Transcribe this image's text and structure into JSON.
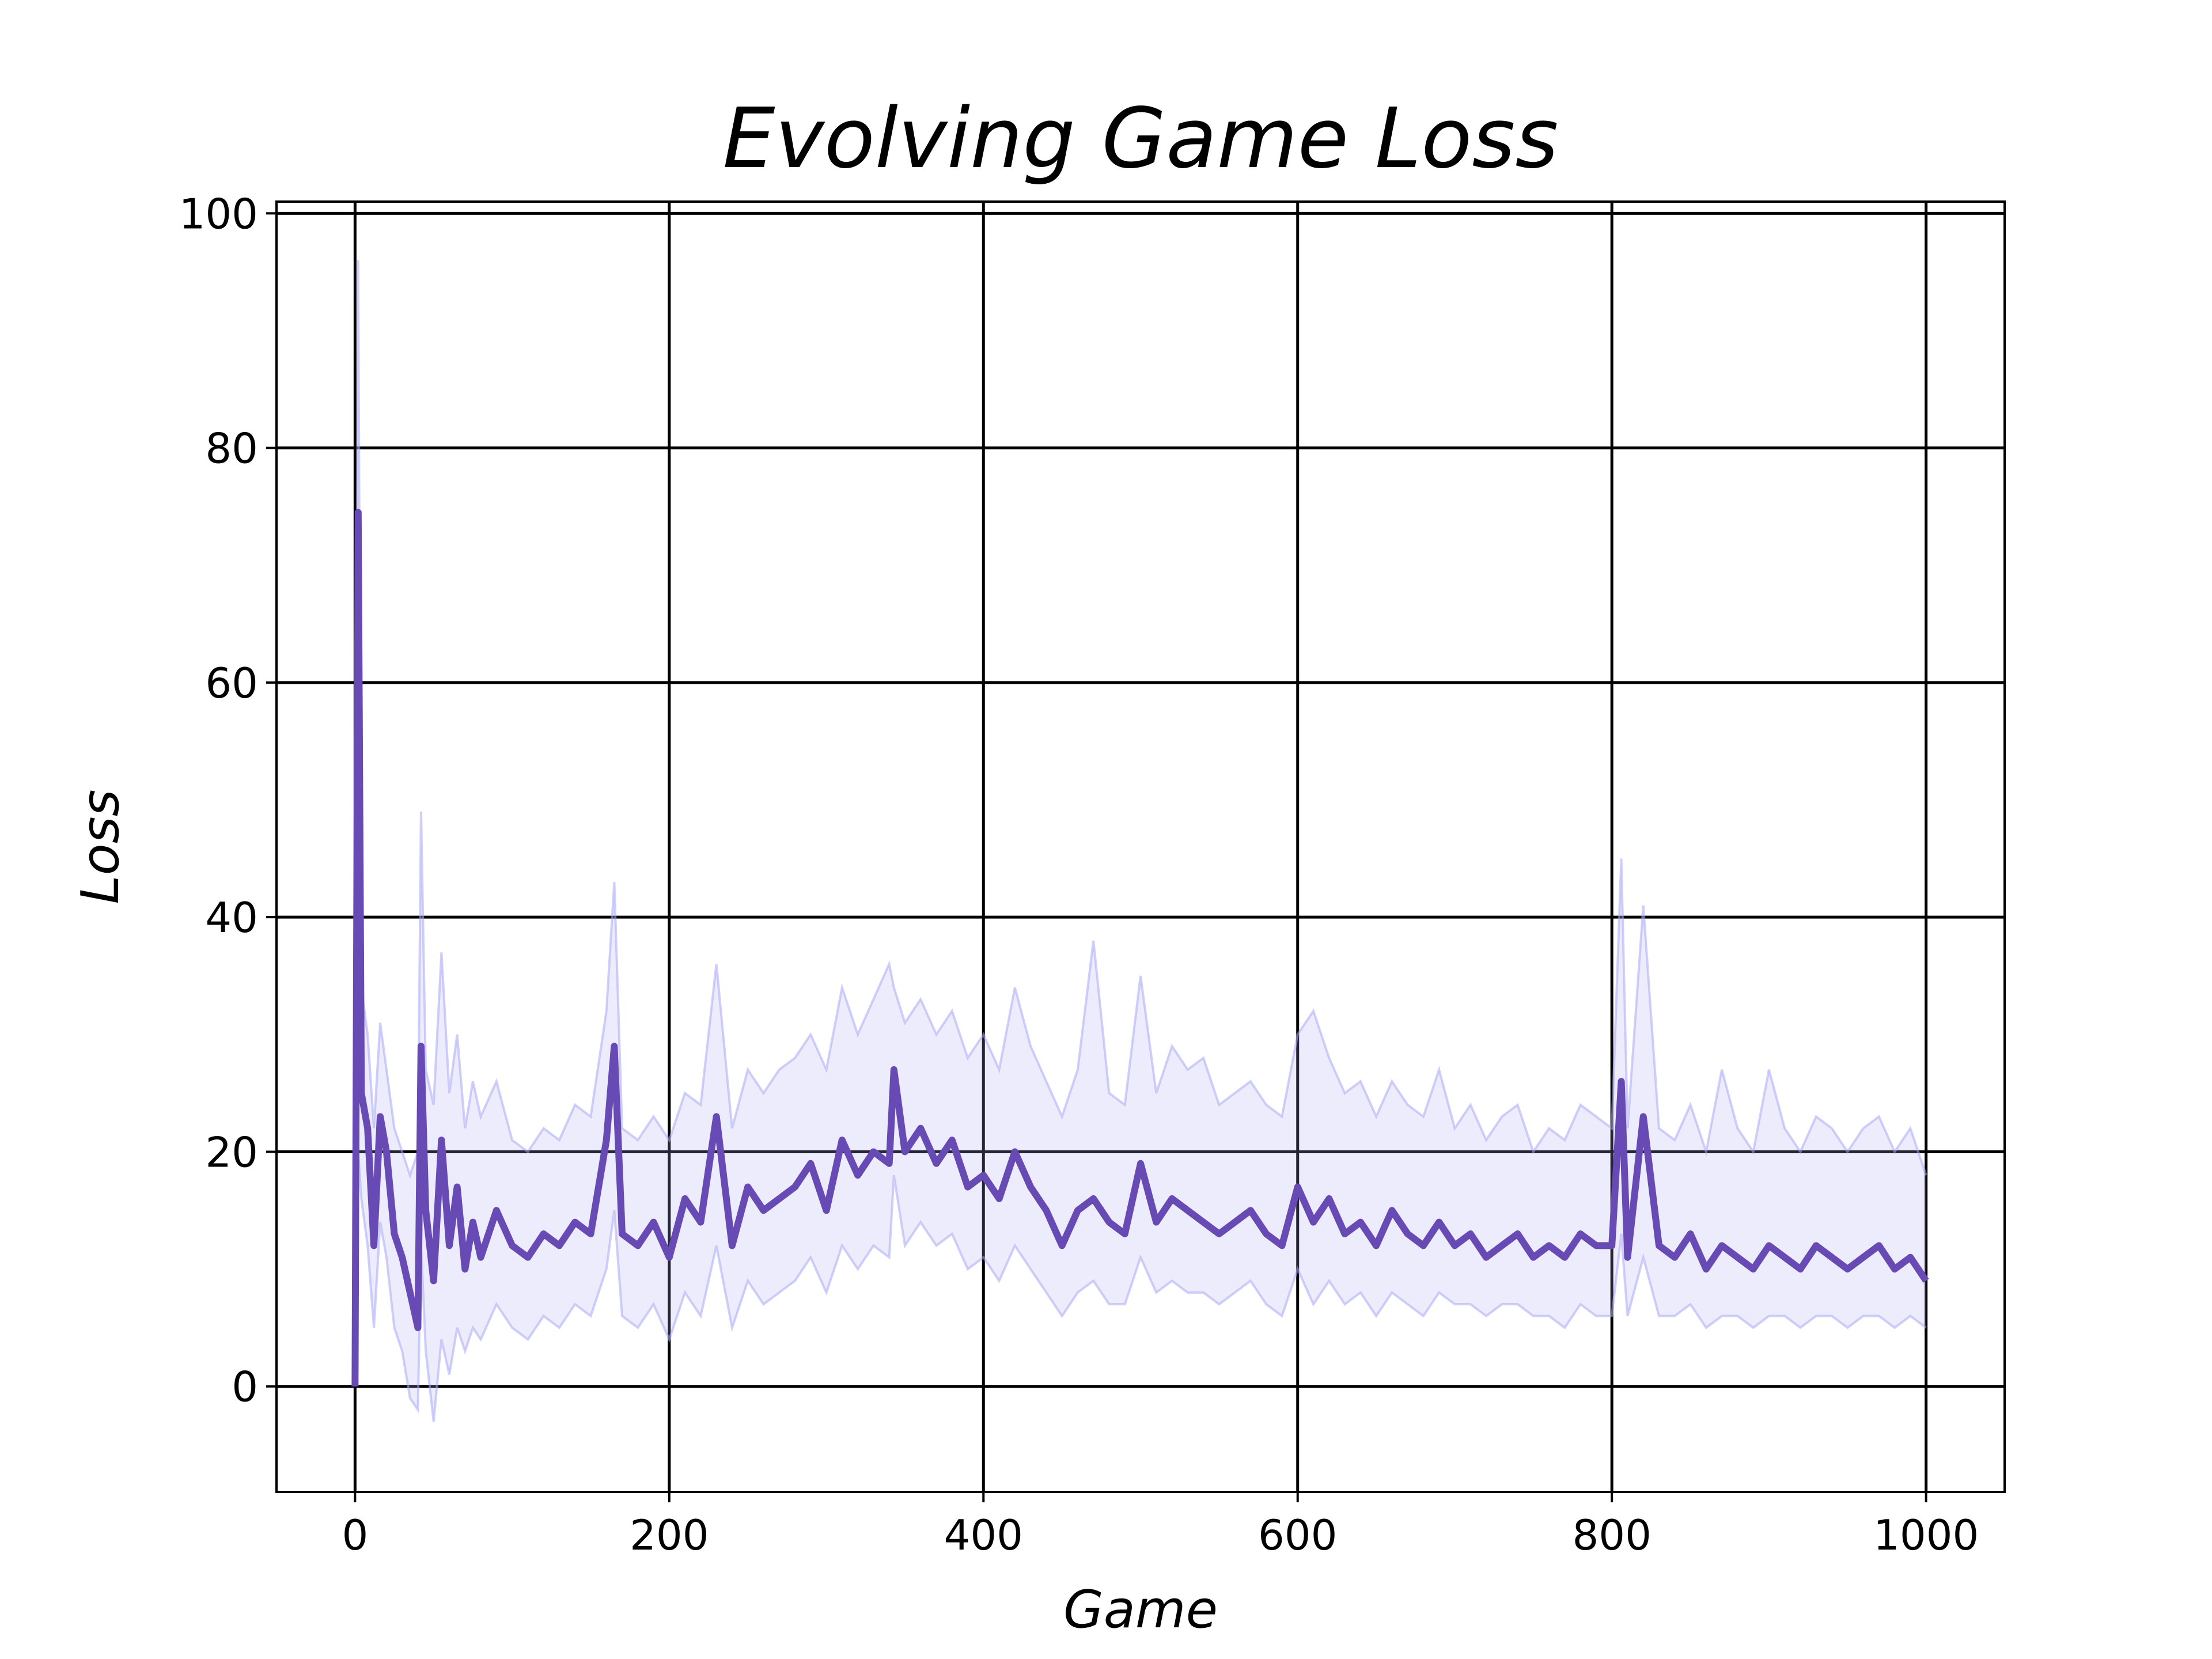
{
  "colors": {
    "mean_line": "#674ab3",
    "band_line": "#aaaaf5",
    "grid": "#000000"
  },
  "chart_data": {
    "type": "line",
    "title": "Evolving Game Loss",
    "xlabel": "Game",
    "ylabel": "Loss",
    "xlim": [
      -50,
      1050
    ],
    "ylim": [
      -9,
      101
    ],
    "xticks": [
      0,
      200,
      400,
      600,
      800,
      1000
    ],
    "yticks": [
      0,
      20,
      40,
      60,
      80,
      100
    ],
    "grid": true,
    "series": [
      {
        "role": "mean",
        "color": "#674ab3",
        "x": [
          0,
          2,
          4,
          8,
          12,
          16,
          20,
          25,
          30,
          35,
          40,
          42,
          45,
          50,
          55,
          60,
          65,
          70,
          75,
          80,
          90,
          100,
          110,
          120,
          130,
          140,
          150,
          160,
          165,
          170,
          180,
          190,
          200,
          210,
          220,
          230,
          240,
          250,
          260,
          270,
          280,
          290,
          300,
          310,
          320,
          330,
          340,
          343,
          350,
          360,
          370,
          380,
          390,
          400,
          410,
          420,
          430,
          440,
          450,
          460,
          470,
          480,
          490,
          500,
          510,
          520,
          530,
          540,
          550,
          560,
          570,
          580,
          590,
          600,
          610,
          620,
          630,
          640,
          650,
          660,
          670,
          680,
          690,
          700,
          710,
          720,
          730,
          740,
          750,
          760,
          770,
          780,
          790,
          800,
          806,
          810,
          820,
          830,
          840,
          850,
          860,
          870,
          880,
          890,
          900,
          910,
          920,
          930,
          940,
          950,
          960,
          970,
          980,
          990,
          1000
        ],
        "y": [
          0,
          74.5,
          25,
          22,
          12,
          23,
          20,
          13,
          11,
          8,
          5,
          29,
          15,
          9,
          21,
          12,
          17,
          10,
          14,
          11,
          15,
          12,
          11,
          13,
          12,
          14,
          13,
          21,
          29,
          13,
          12,
          14,
          11,
          16,
          14,
          23,
          12,
          17,
          15,
          16,
          17,
          19,
          15,
          21,
          18,
          20,
          19,
          27,
          20,
          22,
          19,
          21,
          17,
          18,
          16,
          20,
          17,
          15,
          12,
          15,
          16,
          14,
          13,
          19,
          14,
          16,
          15,
          14,
          13,
          14,
          15,
          13,
          12,
          17,
          14,
          16,
          13,
          14,
          12,
          15,
          13,
          12,
          14,
          12,
          13,
          11,
          12,
          13,
          11,
          12,
          11,
          13,
          12,
          12,
          26,
          11,
          23,
          12,
          11,
          13,
          10,
          12,
          11,
          10,
          12,
          11,
          10,
          12,
          11,
          10,
          11,
          12,
          10,
          11,
          9
        ]
      },
      {
        "role": "upper",
        "color": "#aaaaf5",
        "x": [
          0,
          2,
          4,
          8,
          12,
          16,
          20,
          25,
          30,
          35,
          40,
          42,
          45,
          50,
          55,
          60,
          65,
          70,
          75,
          80,
          90,
          100,
          110,
          120,
          130,
          140,
          150,
          160,
          165,
          170,
          180,
          190,
          200,
          210,
          220,
          230,
          240,
          250,
          260,
          270,
          280,
          290,
          300,
          310,
          320,
          330,
          340,
          343,
          350,
          360,
          370,
          380,
          390,
          400,
          410,
          420,
          430,
          440,
          450,
          460,
          470,
          480,
          490,
          500,
          510,
          520,
          530,
          540,
          550,
          560,
          570,
          580,
          590,
          600,
          610,
          620,
          630,
          640,
          650,
          660,
          670,
          680,
          690,
          700,
          710,
          720,
          730,
          740,
          750,
          760,
          770,
          780,
          790,
          800,
          806,
          810,
          820,
          830,
          840,
          850,
          860,
          870,
          880,
          890,
          900,
          910,
          920,
          930,
          940,
          950,
          960,
          970,
          980,
          990,
          1000
        ],
        "y": [
          0,
          96,
          34,
          30,
          22,
          31,
          27,
          22,
          20,
          18,
          20,
          49,
          27,
          24,
          37,
          25,
          30,
          22,
          26,
          23,
          26,
          21,
          20,
          22,
          21,
          24,
          23,
          32,
          43,
          22,
          21,
          23,
          21,
          25,
          24,
          36,
          22,
          27,
          25,
          27,
          28,
          30,
          27,
          34,
          30,
          33,
          36,
          34,
          31,
          33,
          30,
          32,
          28,
          30,
          27,
          34,
          29,
          26,
          23,
          27,
          38,
          25,
          24,
          35,
          25,
          29,
          27,
          28,
          24,
          25,
          26,
          24,
          23,
          30,
          32,
          28,
          25,
          26,
          23,
          26,
          24,
          23,
          27,
          22,
          24,
          21,
          23,
          24,
          20,
          22,
          21,
          24,
          23,
          22,
          45,
          22,
          41,
          22,
          21,
          24,
          20,
          27,
          22,
          20,
          27,
          22,
          20,
          23,
          22,
          20,
          22,
          23,
          20,
          22,
          18
        ]
      },
      {
        "role": "lower",
        "color": "#aaaaf5",
        "x": [
          0,
          2,
          4,
          8,
          12,
          16,
          20,
          25,
          30,
          35,
          40,
          42,
          45,
          50,
          55,
          60,
          65,
          70,
          75,
          80,
          90,
          100,
          110,
          120,
          130,
          140,
          150,
          160,
          165,
          170,
          180,
          190,
          200,
          210,
          220,
          230,
          240,
          250,
          260,
          270,
          280,
          290,
          300,
          310,
          320,
          330,
          340,
          343,
          350,
          360,
          370,
          380,
          390,
          400,
          410,
          420,
          430,
          440,
          450,
          460,
          470,
          480,
          490,
          500,
          510,
          520,
          530,
          540,
          550,
          560,
          570,
          580,
          590,
          600,
          610,
          620,
          630,
          640,
          650,
          660,
          670,
          680,
          690,
          700,
          710,
          720,
          730,
          740,
          750,
          760,
          770,
          780,
          790,
          800,
          806,
          810,
          820,
          830,
          840,
          850,
          860,
          870,
          880,
          890,
          900,
          910,
          920,
          930,
          940,
          950,
          960,
          970,
          980,
          990,
          1000
        ],
        "y": [
          0,
          20,
          16,
          12,
          5,
          14,
          11,
          5,
          3,
          -1,
          -2,
          12,
          3,
          -3,
          4,
          1,
          5,
          3,
          5,
          4,
          7,
          5,
          4,
          6,
          5,
          7,
          6,
          10,
          15,
          6,
          5,
          7,
          4,
          8,
          6,
          12,
          5,
          9,
          7,
          8,
          9,
          11,
          8,
          12,
          10,
          12,
          11,
          18,
          12,
          14,
          12,
          13,
          10,
          11,
          9,
          12,
          10,
          8,
          6,
          8,
          9,
          7,
          7,
          11,
          8,
          9,
          8,
          8,
          7,
          8,
          9,
          7,
          6,
          10,
          7,
          9,
          7,
          8,
          6,
          8,
          7,
          6,
          8,
          7,
          7,
          6,
          7,
          7,
          6,
          6,
          5,
          7,
          6,
          6,
          13,
          6,
          11,
          6,
          6,
          7,
          5,
          6,
          6,
          5,
          6,
          6,
          5,
          6,
          6,
          5,
          6,
          6,
          5,
          6,
          5
        ]
      }
    ]
  }
}
